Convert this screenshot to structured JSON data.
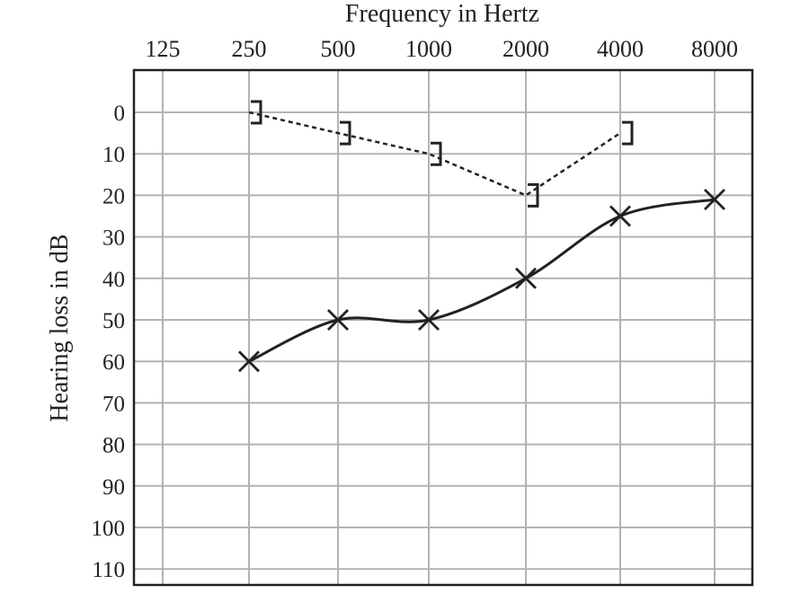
{
  "chart_data": {
    "type": "line",
    "title": "",
    "xlabel": "Frequency in Hertz",
    "ylabel": "Hearing loss in dB",
    "x_categories": [
      "125",
      "250",
      "500",
      "1000",
      "2000",
      "4000",
      "8000"
    ],
    "y_ticks": [
      "0",
      "10",
      "20",
      "30",
      "40",
      "50",
      "60",
      "70",
      "80",
      "90",
      "100",
      "110"
    ],
    "ylim": [
      0,
      110
    ],
    "y_inverted": true,
    "grid": true,
    "x_axis_position": "top",
    "series": [
      {
        "style": "dashed",
        "marker": "]",
        "color": "#222222",
        "x": [
          "250",
          "500",
          "1000",
          "2000",
          "4000"
        ],
        "values": [
          0,
          5,
          10,
          20,
          5
        ]
      },
      {
        "style": "solid",
        "marker": "X",
        "color": "#222222",
        "x": [
          "250",
          "500",
          "1000",
          "2000",
          "4000",
          "8000"
        ],
        "values": [
          60,
          50,
          50,
          40,
          25,
          21
        ]
      }
    ]
  }
}
